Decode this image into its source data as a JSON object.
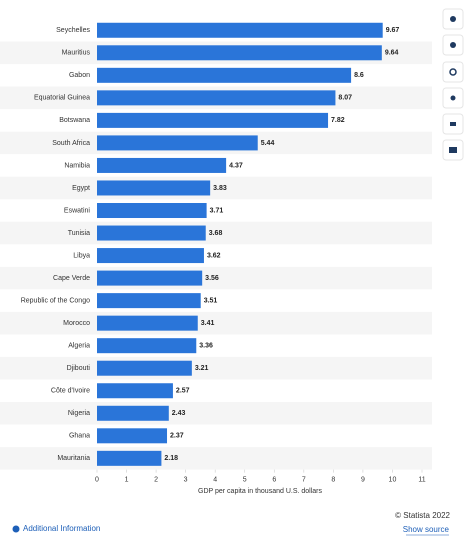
{
  "chart_data": {
    "type": "bar",
    "orientation": "horizontal",
    "categories": [
      "Seychelles",
      "Mauritius",
      "Gabon",
      "Equatorial Guinea",
      "Botswana",
      "South Africa",
      "Namibia",
      "Egypt",
      "Eswatini",
      "Tunisia",
      "Libya",
      "Cape Verde",
      "Republic of the Congo",
      "Morocco",
      "Algeria",
      "Djibouti",
      "Côte d'Ivoire",
      "Nigeria",
      "Ghana",
      "Mauritania"
    ],
    "values": [
      9.67,
      9.64,
      8.6,
      8.07,
      7.82,
      5.44,
      4.37,
      3.83,
      3.71,
      3.68,
      3.62,
      3.56,
      3.51,
      3.41,
      3.36,
      3.21,
      2.57,
      2.43,
      2.37,
      2.18
    ],
    "color": "#2a75d9",
    "xlim": [
      0,
      11
    ],
    "xticks": [
      0,
      1,
      2,
      3,
      4,
      5,
      6,
      7,
      8,
      9,
      10,
      11
    ],
    "x_label": "GDP per capita in thousand U.S. dollars",
    "striped_rows": true
  },
  "footer": {
    "copyright": "© Statista 2022",
    "source_link": "Show source",
    "info_link": "Additional Information"
  }
}
